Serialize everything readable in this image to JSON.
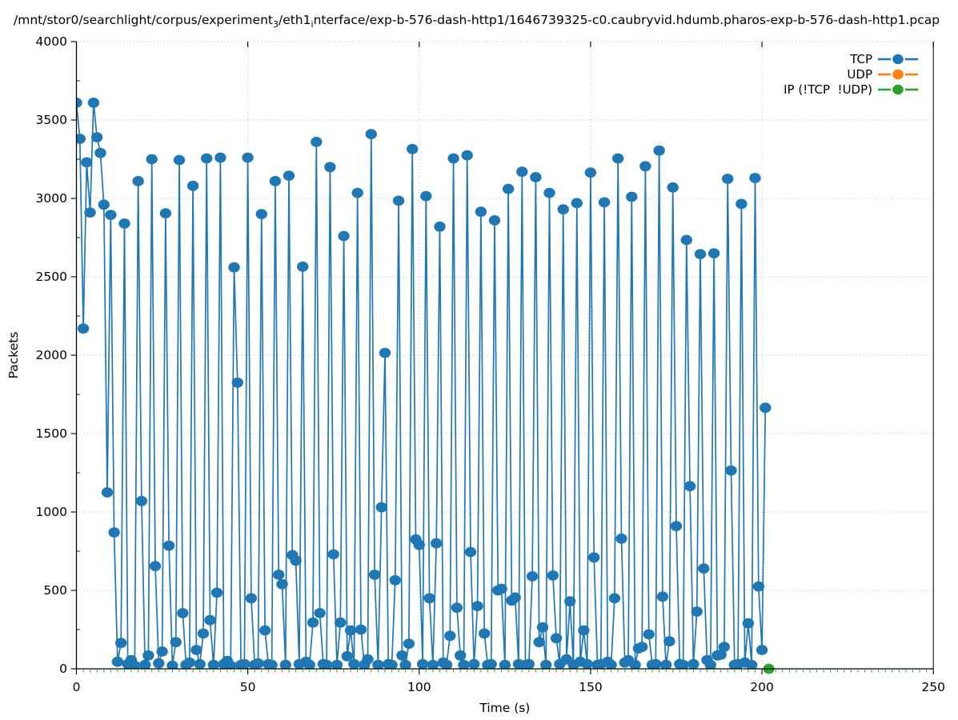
{
  "title": {
    "plain": "/mnt/stor0/searchlight/corpus/experiment_3/eth1_interface/exp-b-576-dash-http1/1646739325-c0.caubryvid.hdumb.pharos-exp-b-576-dash-http1.pcap",
    "parts": [
      {
        "text": "/mnt/stor0/searchlight/corpus/experiment"
      },
      {
        "text": "3",
        "subscript": true
      },
      {
        "text": "/eth1"
      },
      {
        "text": "i",
        "subscript": true
      },
      {
        "text": "nterface/exp-b-576-dash-http1/1646739325-c0.caubryvid.hdumb.pharos-exp-b-576-dash-http1.pcap"
      }
    ]
  },
  "style": {
    "grid_color": "#b8b8b8",
    "spine_color": "#000000",
    "minor_xtick_color": "#2ca02c",
    "text_color": "#000000",
    "background": "#ffffff"
  },
  "chart_data": {
    "type": "line",
    "title": "/mnt/stor0/searchlight/corpus/experiment_3/eth1_interface/exp-b-576-dash-http1/1646739325-c0.caubryvid.hdumb.pharos-exp-b-576-dash-http1.pcap",
    "xlabel": "Time (s)",
    "ylabel": "Packets",
    "xlim": [
      0,
      250
    ],
    "ylim": [
      0,
      4000
    ],
    "xticks": [
      0,
      50,
      100,
      150,
      200,
      250
    ],
    "yticks": [
      0,
      500,
      1000,
      1500,
      2000,
      2500,
      3000,
      3500,
      4000
    ],
    "x_minor_tick_step": 2,
    "y_minor_tick_step": 250,
    "grid": "dotted lines at major ticks, both axes",
    "legend_position": "top-right inside plot",
    "series": [
      {
        "name": "TCP",
        "color": "#1f77b4",
        "marker": "circle",
        "line": "solid",
        "x_start": 0,
        "x_step": 1,
        "values": [
          3610,
          3380,
          2170,
          3230,
          2910,
          3610,
          3390,
          3290,
          2960,
          1125,
          2895,
          870,
          45,
          165,
          2840,
          30,
          55,
          20,
          3110,
          1070,
          25,
          85,
          3250,
          655,
          35,
          110,
          2905,
          785,
          20,
          170,
          3245,
          355,
          25,
          40,
          3080,
          120,
          30,
          225,
          3255,
          310,
          25,
          485,
          3260,
          30,
          50,
          20,
          2560,
          1825,
          25,
          30,
          3260,
          450,
          25,
          35,
          2900,
          245,
          30,
          25,
          3110,
          600,
          540,
          25,
          3145,
          725,
          690,
          30,
          2565,
          45,
          25,
          295,
          3360,
          355,
          30,
          25,
          3200,
          730,
          25,
          295,
          2760,
          80,
          245,
          30,
          3035,
          250,
          25,
          60,
          3410,
          600,
          25,
          1030,
          2015,
          30,
          25,
          565,
          2985,
          85,
          25,
          160,
          3315,
          825,
          790,
          30,
          3015,
          450,
          25,
          800,
          2820,
          40,
          25,
          210,
          3255,
          390,
          85,
          25,
          3275,
          745,
          30,
          400,
          2915,
          225,
          25,
          30,
          2860,
          500,
          510,
          25,
          3060,
          435,
          455,
          30,
          3170,
          25,
          30,
          590,
          3135,
          170,
          265,
          25,
          3035,
          595,
          195,
          30,
          2930,
          60,
          430,
          25,
          2970,
          45,
          245,
          30,
          3165,
          710,
          25,
          30,
          2975,
          45,
          25,
          450,
          3255,
          830,
          40,
          55,
          3010,
          25,
          130,
          140,
          3205,
          220,
          25,
          30,
          3305,
          460,
          25,
          175,
          3070,
          910,
          30,
          25,
          2735,
          1165,
          30,
          365,
          2645,
          640,
          55,
          25,
          2650,
          85,
          90,
          140,
          3125,
          1265,
          25,
          30,
          2965,
          40,
          290,
          25,
          3130,
          525,
          120,
          1665
        ]
      },
      {
        "name": "UDP",
        "color": "#ff7f0e",
        "marker": "circle",
        "line": "solid",
        "points": []
      },
      {
        "name": "IP (!TCP  !UDP)",
        "color": "#2ca02c",
        "marker": "circle",
        "line": "solid",
        "points": [
          [
            202,
            0
          ]
        ]
      }
    ]
  }
}
